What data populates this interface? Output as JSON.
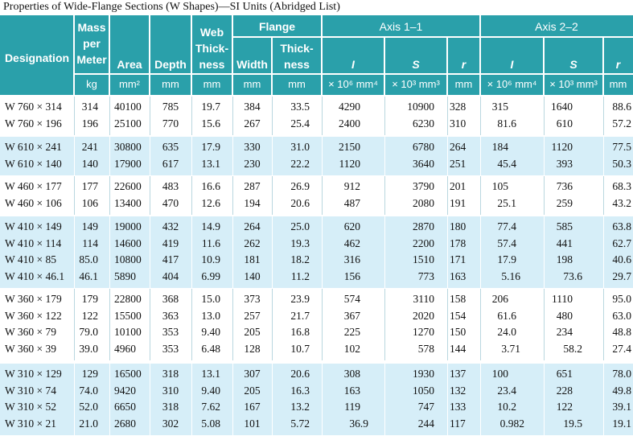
{
  "title": "Properties of Wide-Flange Sections (W Shapes)—SI Units (Abridged List)",
  "header": {
    "designation": "Designation",
    "mass": [
      "Mass",
      "per",
      "Meter"
    ],
    "area": "Area",
    "depth": "Depth",
    "web": [
      "Web",
      "Thick-",
      "ness"
    ],
    "flange": "Flange",
    "flange_width": "Width",
    "flange_thickness": [
      "Thick-",
      "ness"
    ],
    "axis1": "Axis 1–1",
    "axis2": "Axis 2–2",
    "axis_cols": [
      "I",
      "S",
      "r",
      "I",
      "S",
      "r"
    ]
  },
  "units": [
    "kg",
    "mm²",
    "mm",
    "mm",
    "mm",
    "mm",
    "× 10⁶ mm⁴",
    "× 10³ mm³",
    "mm",
    "× 10⁶ mm⁴",
    "× 10³ mm³",
    "mm"
  ],
  "groups": [
    [
      [
        "W 760 × 314",
        "314",
        "40100",
        "785",
        "19.7",
        "384",
        "33.5",
        "4290",
        "10900",
        "328",
        "315",
        "1640",
        "88.6"
      ],
      [
        "W 760 × 196",
        "196",
        "25100",
        "770",
        "15.6",
        "267",
        "25.4",
        "2400",
        "6230",
        "310",
        "81.6",
        "610",
        "57.2"
      ]
    ],
    [
      [
        "W 610 × 241",
        "241",
        "30800",
        "635",
        "17.9",
        "330",
        "31.0",
        "2150",
        "6780",
        "264",
        "184",
        "1120",
        "77.5"
      ],
      [
        "W 610 × 140",
        "140",
        "17900",
        "617",
        "13.1",
        "230",
        "22.2",
        "1120",
        "3640",
        "251",
        "45.4",
        "393",
        "50.3"
      ]
    ],
    [
      [
        "W 460 × 177",
        "177",
        "22600",
        "483",
        "16.6",
        "287",
        "26.9",
        "912",
        "3790",
        "201",
        "105",
        "736",
        "68.3"
      ],
      [
        "W 460 × 106",
        "106",
        "13400",
        "470",
        "12.6",
        "194",
        "20.6",
        "487",
        "2080",
        "191",
        "25.1",
        "259",
        "43.2"
      ]
    ],
    [
      [
        "W 410 × 149",
        "149",
        "19000",
        "432",
        "14.9",
        "264",
        "25.0",
        "620",
        "2870",
        "180",
        "77.4",
        "585",
        "63.8"
      ],
      [
        "W 410 × 114",
        "114",
        "14600",
        "419",
        "11.6",
        "262",
        "19.3",
        "462",
        "2200",
        "178",
        "57.4",
        "441",
        "62.7"
      ],
      [
        "W 410 × 85",
        "85.0",
        "10800",
        "417",
        "10.9",
        "181",
        "18.2",
        "316",
        "1510",
        "171",
        "17.9",
        "198",
        "40.6"
      ],
      [
        "W 410 × 46.1",
        "46.1",
        "5890",
        "404",
        "6.99",
        "140",
        "11.2",
        "156",
        "773",
        "163",
        "5.16",
        "73.6",
        "29.7"
      ]
    ],
    [
      [
        "W 360 × 179",
        "179",
        "22800",
        "368",
        "15.0",
        "373",
        "23.9",
        "574",
        "3110",
        "158",
        "206",
        "1110",
        "95.0"
      ],
      [
        "W 360 × 122",
        "122",
        "15500",
        "363",
        "13.0",
        "257",
        "21.7",
        "367",
        "2020",
        "154",
        "61.6",
        "480",
        "63.0"
      ],
      [
        "W 360 × 79",
        "79.0",
        "10100",
        "353",
        "9.40",
        "205",
        "16.8",
        "225",
        "1270",
        "150",
        "24.0",
        "234",
        "48.8"
      ],
      [
        "W 360 × 39",
        "39.0",
        "4960",
        "353",
        "6.48",
        "128",
        "10.7",
        "102",
        "578",
        "144",
        "3.71",
        "58.2",
        "27.4"
      ]
    ],
    [
      [
        "W 310 × 129",
        "129",
        "16500",
        "318",
        "13.1",
        "307",
        "20.6",
        "308",
        "1930",
        "137",
        "100",
        "651",
        "78.0"
      ],
      [
        "W 310 × 74",
        "74.0",
        "9420",
        "310",
        "9.40",
        "205",
        "16.3",
        "163",
        "1050",
        "132",
        "23.4",
        "228",
        "49.8"
      ],
      [
        "W 310 × 52",
        "52.0",
        "6650",
        "318",
        "7.62",
        "167",
        "13.2",
        "119",
        "747",
        "133",
        "10.2",
        "122",
        "39.1"
      ],
      [
        "W 310 × 21",
        "21.0",
        "2680",
        "302",
        "5.08",
        "101",
        "5.72",
        "36.9",
        "244",
        "117",
        "0.982",
        "19.5",
        "19.1"
      ]
    ]
  ]
}
